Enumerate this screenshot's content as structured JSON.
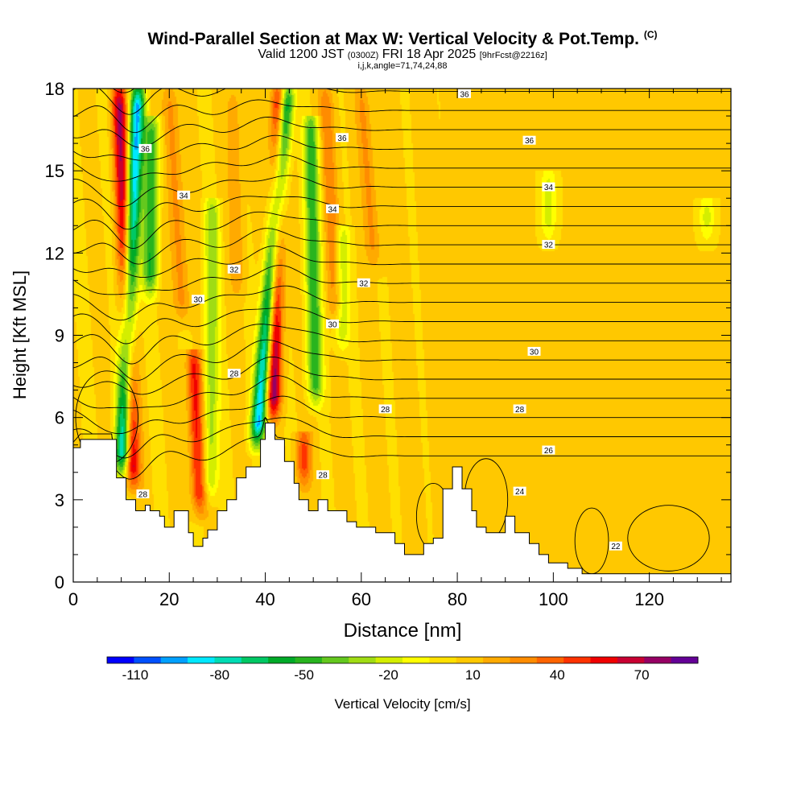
{
  "titles": {
    "main": "Wind-Parallel Section at Max W: Vertical Velocity & Pot.Temp.",
    "main_mark": "(C)",
    "valid_pre": "Valid 1200 JST",
    "valid_utc": "(0300Z)",
    "valid_date": "FRI 18 Apr 2025",
    "fcst": "[9hrFcst@2216z]",
    "params": "i,j,k,angle=71,74,24,88"
  },
  "chart_data": {
    "type": "heatmap",
    "xlabel": "Distance [nm]",
    "ylabel": "Height [Kft MSL]",
    "xlim": [
      0,
      137
    ],
    "ylim": [
      0,
      18
    ],
    "x_ticks": [
      "0",
      "20",
      "40",
      "60",
      "80",
      "100",
      "120"
    ],
    "x_tick_values": [
      0,
      20,
      40,
      60,
      80,
      100,
      120
    ],
    "y_ticks": [
      "0",
      "3",
      "6",
      "9",
      "12",
      "15",
      "18"
    ],
    "y_tick_values": [
      0,
      3,
      6,
      9,
      12,
      15,
      18
    ],
    "colorbar": {
      "label": "Vertical Velocity [cm/s]",
      "tick_labels": [
        "-110",
        "-80",
        "-50",
        "-20",
        "10",
        "40",
        "70"
      ],
      "tick_values": [
        -110,
        -80,
        -50,
        -20,
        10,
        40,
        70
      ],
      "range": [
        -120,
        90
      ],
      "colors": [
        "#0000ff",
        "#0050ff",
        "#00a0ff",
        "#00e8ff",
        "#00dcb4",
        "#00c864",
        "#00aa28",
        "#28b41e",
        "#64c81e",
        "#a0dc14",
        "#d4ee00",
        "#ffff00",
        "#ffe000",
        "#ffc800",
        "#ffaa00",
        "#ff8c00",
        "#ff6400",
        "#ff3200",
        "#f00000",
        "#c80032",
        "#960064",
        "#640096"
      ]
    },
    "terrain": [
      [
        0,
        4.9
      ],
      [
        1.5,
        5.2
      ],
      [
        8,
        5.2
      ],
      [
        9,
        3.8
      ],
      [
        11,
        3.0
      ],
      [
        13,
        2.6
      ],
      [
        15,
        2.8
      ],
      [
        16,
        2.6
      ],
      [
        18,
        2.4
      ],
      [
        19,
        2.0
      ],
      [
        21,
        2.6
      ],
      [
        23,
        2.6
      ],
      [
        24,
        1.8
      ],
      [
        25,
        1.3
      ],
      [
        27,
        1.6
      ],
      [
        28,
        1.9
      ],
      [
        30,
        2.6
      ],
      [
        32,
        3.0
      ],
      [
        34,
        3.8
      ],
      [
        36,
        4.2
      ],
      [
        38,
        4.2
      ],
      [
        39,
        5.2
      ],
      [
        40,
        5.8
      ],
      [
        42,
        5.2
      ],
      [
        44,
        4.4
      ],
      [
        46,
        3.6
      ],
      [
        47,
        3.0
      ],
      [
        49,
        2.6
      ],
      [
        51,
        3.0
      ],
      [
        53,
        2.6
      ],
      [
        55,
        2.6
      ],
      [
        57,
        2.2
      ],
      [
        59,
        2.0
      ],
      [
        61,
        2.0
      ],
      [
        63,
        1.8
      ],
      [
        65,
        1.8
      ],
      [
        67,
        1.4
      ],
      [
        69,
        1.0
      ],
      [
        71,
        1.0
      ],
      [
        73,
        1.4
      ],
      [
        75,
        1.6
      ],
      [
        77,
        3.4
      ],
      [
        79,
        4.2
      ],
      [
        81,
        3.4
      ],
      [
        83,
        2.6
      ],
      [
        84,
        2.0
      ],
      [
        86,
        1.8
      ],
      [
        88,
        1.8
      ],
      [
        90,
        2.4
      ],
      [
        92,
        1.8
      ],
      [
        95,
        1.4
      ],
      [
        97,
        1.0
      ],
      [
        99,
        0.7
      ],
      [
        103,
        0.5
      ],
      [
        106,
        0.3
      ],
      [
        137,
        0.3
      ]
    ],
    "updrafts": [
      {
        "x_bottom": 12.5,
        "x_top": 9.5,
        "peak": 70,
        "y_bottom": 3.0,
        "y_top": 18
      },
      {
        "x_bottom": 23.0,
        "x_top": 20.0,
        "peak": 30,
        "y_bottom": 9.0,
        "y_top": 18
      },
      {
        "x_bottom": 26.5,
        "x_top": 25.0,
        "peak": 55,
        "y_bottom": 2.0,
        "y_top": 8.5
      },
      {
        "x_bottom": 41.5,
        "x_top": 43.0,
        "peak": 80,
        "y_bottom": 5.5,
        "y_top": 18
      },
      {
        "x_bottom": 48.0,
        "x_top": 48.0,
        "peak": 45,
        "y_bottom": 3.0,
        "y_top": 5.5
      },
      {
        "x_bottom": 55.0,
        "x_top": 52.5,
        "peak": 30,
        "y_bottom": 9.0,
        "y_top": 18
      },
      {
        "x_bottom": 63.0,
        "x_top": 60.0,
        "peak": 25,
        "y_bottom": 11.0,
        "y_top": 18
      },
      {
        "x_bottom": 34.5,
        "x_top": 33.5,
        "peak": 20,
        "y_bottom": 10.0,
        "y_top": 18
      }
    ],
    "downdrafts": [
      {
        "x_bottom": 10.0,
        "x_top": 13.5,
        "peak": -90,
        "y_bottom": 3.5,
        "y_top": 18
      },
      {
        "x_bottom": 16.0,
        "x_top": 16.5,
        "peak": -50,
        "y_bottom": 10.0,
        "y_top": 17
      },
      {
        "x_bottom": 38.0,
        "x_top": 44.5,
        "peak": -90,
        "y_bottom": 4.5,
        "y_top": 18
      },
      {
        "x_bottom": 50.5,
        "x_top": 49.5,
        "peak": -50,
        "y_bottom": 6.0,
        "y_top": 17
      },
      {
        "x_bottom": 28.5,
        "x_top": 29.0,
        "peak": -30,
        "y_bottom": 2.5,
        "y_top": 14
      },
      {
        "x_bottom": 56.0,
        "x_top": 56.0,
        "peak": -25,
        "y_bottom": 8.0,
        "y_top": 13
      },
      {
        "x_bottom": 99.0,
        "x_top": 99.0,
        "peak": -20,
        "y_bottom": 12.0,
        "y_top": 15
      },
      {
        "x_bottom": 132.0,
        "x_top": 132.0,
        "peak": -20,
        "y_bottom": 12.0,
        "y_top": 14
      }
    ],
    "contour_labels": [
      {
        "text": "36",
        "x": 81.5,
        "y": 17.8
      },
      {
        "text": "36",
        "x": 15.0,
        "y": 15.8
      },
      {
        "text": "36",
        "x": 56.0,
        "y": 16.2
      },
      {
        "text": "36",
        "x": 95.0,
        "y": 16.1
      },
      {
        "text": "34",
        "x": 23.0,
        "y": 14.1
      },
      {
        "text": "34",
        "x": 54.0,
        "y": 13.6
      },
      {
        "text": "34",
        "x": 99.0,
        "y": 14.4
      },
      {
        "text": "32",
        "x": 33.5,
        "y": 11.4
      },
      {
        "text": "32",
        "x": 60.5,
        "y": 10.9
      },
      {
        "text": "32",
        "x": 99.0,
        "y": 12.3
      },
      {
        "text": "30",
        "x": 26.0,
        "y": 10.3
      },
      {
        "text": "30",
        "x": 54.0,
        "y": 9.4
      },
      {
        "text": "30",
        "x": 96.0,
        "y": 8.4
      },
      {
        "text": "28",
        "x": 33.5,
        "y": 7.6
      },
      {
        "text": "28",
        "x": 65.0,
        "y": 6.3
      },
      {
        "text": "28",
        "x": 93.0,
        "y": 6.3
      },
      {
        "text": "26",
        "x": 99.0,
        "y": 4.8
      },
      {
        "text": "28",
        "x": 52.0,
        "y": 3.9
      },
      {
        "text": "24",
        "x": 93.0,
        "y": 3.3
      },
      {
        "text": "28",
        "x": 14.5,
        "y": 3.2
      },
      {
        "text": "22",
        "x": 113.0,
        "y": 1.3
      }
    ]
  }
}
